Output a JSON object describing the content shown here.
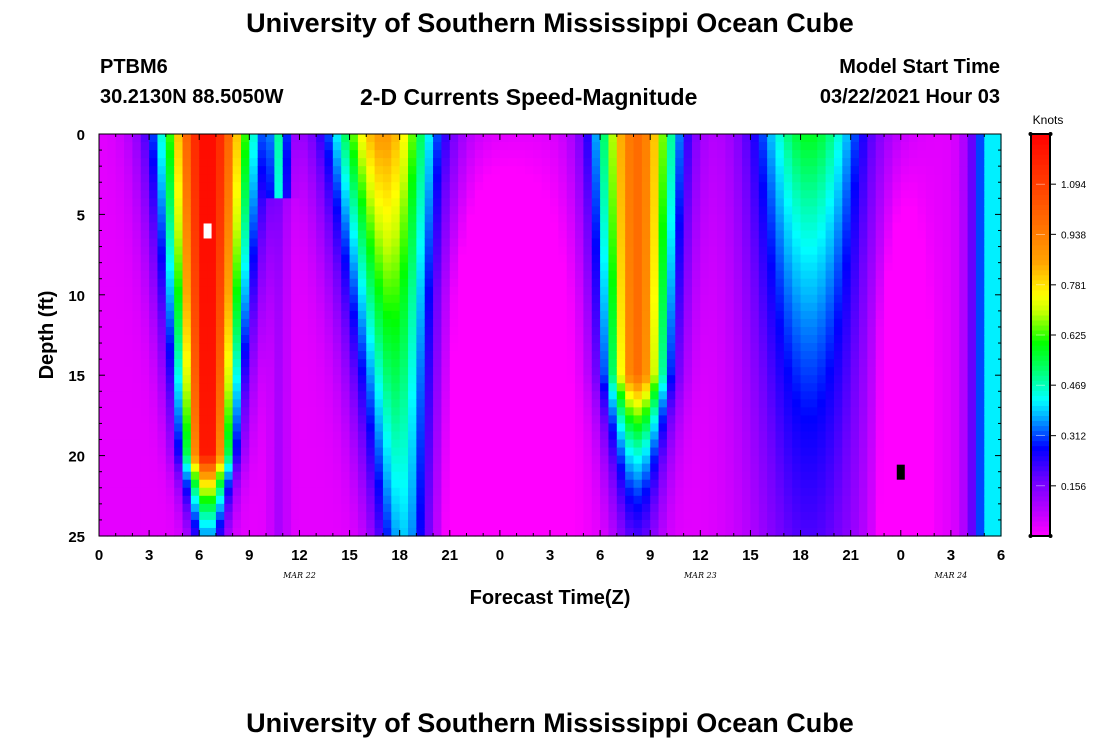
{
  "header": {
    "title": "University of Southern Mississippi Ocean Cube",
    "station_id": "PTBM6",
    "station_coords": "30.2130N 88.5050W",
    "plot_title": "2-D Currents Speed-Magnitude",
    "model_start_label": "Model Start Time",
    "model_start_value": "03/22/2021 Hour 03"
  },
  "footer": {
    "title": "University of Southern Mississippi Ocean Cube"
  },
  "chart_data": {
    "type": "heatmap",
    "variable": "Current speed magnitude",
    "units": "Knots",
    "xlabel": "Forecast Time(Z)",
    "ylabel": "Depth (ft)",
    "x_range_hours": [
      0,
      54
    ],
    "x_tick_labels": [
      "0",
      "3",
      "6",
      "9",
      "12",
      "15",
      "18",
      "21",
      "0",
      "3",
      "6",
      "9",
      "12",
      "15",
      "18",
      "21",
      "0",
      "3",
      "6"
    ],
    "date_labels": [
      {
        "hour": 12,
        "text": "MAR 22"
      },
      {
        "hour": 36,
        "text": "MAR 23"
      },
      {
        "hour": 51,
        "text": "MAR 24"
      }
    ],
    "y_range_ft": [
      0,
      25
    ],
    "y_tick_labels": [
      "0",
      "5",
      "10",
      "15",
      "20",
      "25"
    ],
    "colorbar": {
      "label": "Knots",
      "min": 0.0,
      "max": 1.25,
      "tick_labels": [
        "0.156",
        "0.312",
        "0.469",
        "0.625",
        "0.781",
        "0.938",
        "1.094"
      ],
      "tick_values": [
        0.156,
        0.312,
        0.469,
        0.625,
        0.781,
        0.938,
        1.094
      ]
    },
    "features": [
      {
        "type": "peak",
        "hour": 6.5,
        "depth_ft": 6,
        "value_knots": 1.2,
        "marker": "white"
      },
      {
        "type": "peak",
        "hour": 17.5,
        "depth_ft": 3,
        "value_knots": 0.85
      },
      {
        "type": "peak",
        "hour": 32,
        "depth_ft": 4,
        "value_knots": 0.95
      },
      {
        "type": "peak",
        "hour": 42.5,
        "depth_ft": 4,
        "value_knots": 0.55
      },
      {
        "type": "minimum",
        "hour": 48,
        "depth_ft": 21,
        "value_knots": 0.02,
        "marker": "black"
      }
    ]
  }
}
